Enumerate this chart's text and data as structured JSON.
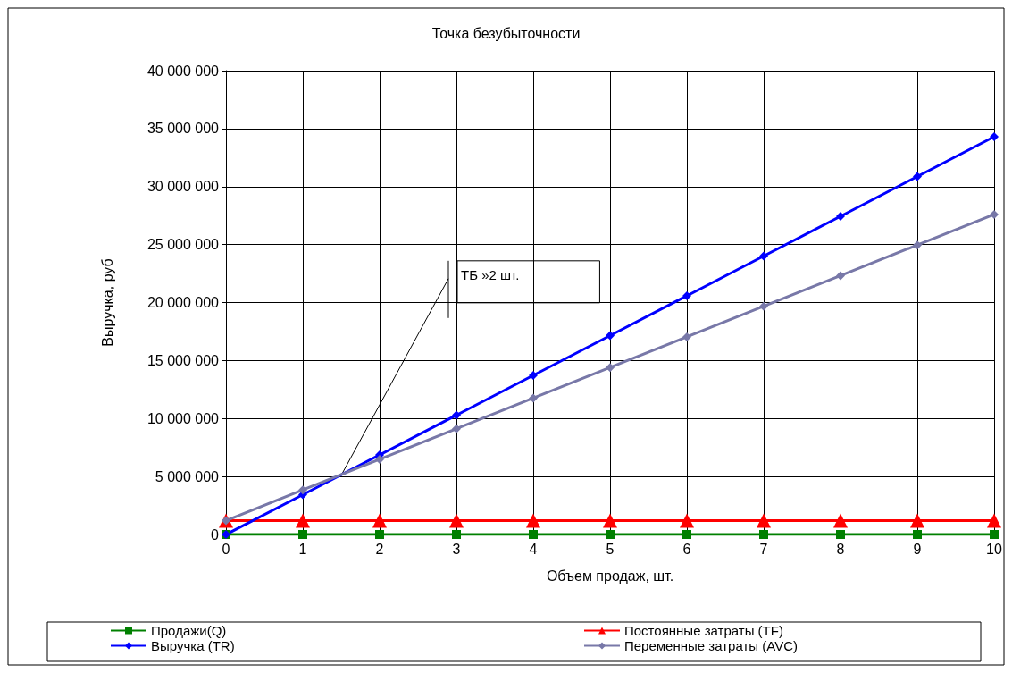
{
  "chart_data": {
    "type": "line",
    "title": "Точка безубыточности",
    "xlabel": "Объем продаж, шт.",
    "ylabel": "Выручка, руб",
    "x": [
      0,
      1,
      2,
      3,
      4,
      5,
      6,
      7,
      8,
      9,
      10
    ],
    "series": [
      {
        "name": "Продажи(Q)",
        "color": "#008000",
        "marker": "square",
        "values": [
          0,
          0,
          0,
          0,
          0,
          0,
          0,
          0,
          0,
          0,
          0
        ]
      },
      {
        "name": "Постоянные затраты (TF)",
        "color": "#ff0000",
        "marker": "triangle",
        "values": [
          1200000,
          1200000,
          1200000,
          1200000,
          1200000,
          1200000,
          1200000,
          1200000,
          1200000,
          1200000,
          1200000
        ]
      },
      {
        "name": "Выручка (TR)",
        "color": "#0000ff",
        "marker": "diamond",
        "values": [
          0,
          3430000,
          6860000,
          10290000,
          13720000,
          17150000,
          20580000,
          24010000,
          27440000,
          30870000,
          34300000
        ]
      },
      {
        "name": "Переменные затраты (AVC)",
        "color": "#7878a8",
        "marker": "diamond",
        "values": [
          1200000,
          3840000,
          6480000,
          9120000,
          11760000,
          14400000,
          17040000,
          19680000,
          22320000,
          24960000,
          27600000
        ]
      }
    ],
    "xlim": [
      0,
      10
    ],
    "xticks": [
      0,
      1,
      2,
      3,
      4,
      5,
      6,
      7,
      8,
      9,
      10
    ],
    "ylim": [
      0,
      40000000
    ],
    "yticks": [
      0,
      5000000,
      10000000,
      15000000,
      20000000,
      25000000,
      30000000,
      35000000,
      40000000
    ],
    "grid": true,
    "legend": "bottom",
    "annotations": [
      {
        "text": "ТБ »2 шт.",
        "x": 1.5,
        "y": 5100000
      }
    ]
  }
}
